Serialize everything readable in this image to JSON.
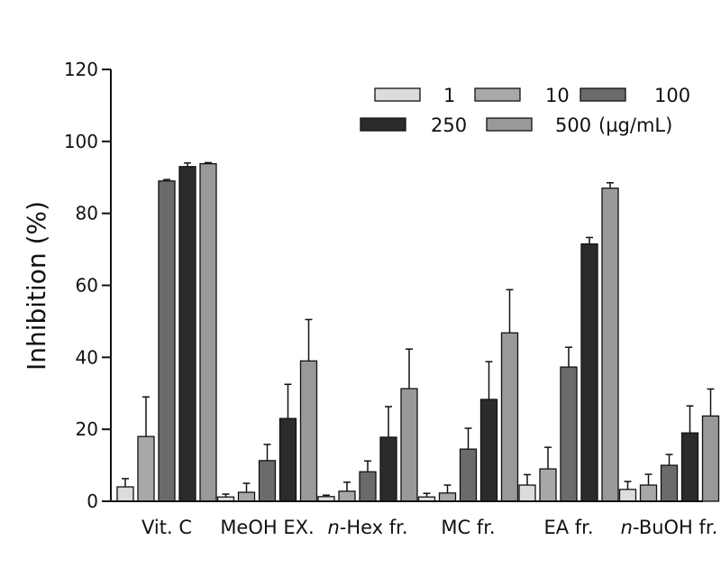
{
  "chart_data": {
    "type": "bar",
    "title": "",
    "xlabel": "",
    "ylabel": "Inhibition (%)",
    "ylim": [
      0,
      120
    ],
    "yticks": [
      0,
      20,
      40,
      60,
      80,
      100,
      120
    ],
    "grid": false,
    "legend_position": "top-right",
    "categories": [
      {
        "prefix": "",
        "italic": "",
        "rest": "Vit. C"
      },
      {
        "prefix": "",
        "italic": "",
        "rest": "MeOH EX."
      },
      {
        "prefix": "",
        "italic": "n",
        "rest": "-Hex fr."
      },
      {
        "prefix": "",
        "italic": "",
        "rest": "MC fr."
      },
      {
        "prefix": "",
        "italic": "",
        "rest": "EA fr."
      },
      {
        "prefix": "",
        "italic": "n",
        "rest": "-BuOH fr."
      }
    ],
    "unit_label": "(µg/mL)",
    "series": [
      {
        "name": "1",
        "color": "#dcdcdc",
        "values": [
          4.0,
          1.2,
          1.3,
          1.2,
          4.5,
          3.3
        ],
        "errors": [
          2.3,
          0.8,
          0.4,
          1.0,
          2.9,
          2.2
        ]
      },
      {
        "name": "10",
        "color": "#a8a8a8",
        "values": [
          18.0,
          2.5,
          2.8,
          2.3,
          9.0,
          4.5
        ],
        "errors": [
          11.0,
          2.5,
          2.5,
          2.2,
          6.0,
          3.0
        ]
      },
      {
        "name": "100",
        "color": "#6b6b6b",
        "values": [
          89.0,
          11.3,
          8.2,
          14.5,
          37.3,
          10.0
        ],
        "errors": [
          0.4,
          4.5,
          3.0,
          5.8,
          5.5,
          3.0
        ]
      },
      {
        "name": "250",
        "color": "#2b2b2b",
        "values": [
          93.0,
          23.0,
          17.8,
          28.3,
          71.5,
          19.0
        ],
        "errors": [
          1.0,
          9.5,
          8.5,
          10.5,
          1.8,
          7.5
        ]
      },
      {
        "name": "500",
        "color": "#999999",
        "values": [
          93.8,
          39.0,
          31.3,
          46.8,
          87.0,
          23.7
        ],
        "errors": [
          0.3,
          11.5,
          11.0,
          12.0,
          1.5,
          7.5
        ]
      }
    ]
  }
}
